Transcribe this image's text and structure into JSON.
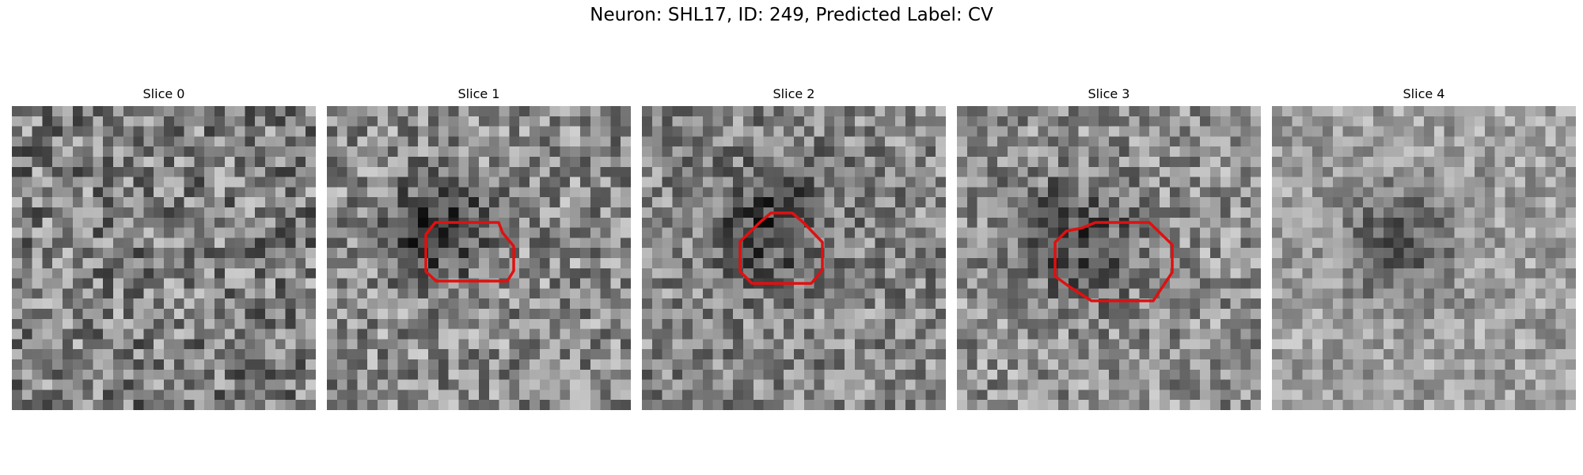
{
  "figure": {
    "title": "Neuron: SHL17, ID: 249, Predicted Label: CV"
  },
  "colors": {
    "contour": "#e01010",
    "background": "#ffffff"
  },
  "panels": [
    {
      "title": "Slice 0",
      "has_contour": false,
      "dark_spot": "none"
    },
    {
      "title": "Slice 1",
      "has_contour": true,
      "dark_spot": "centered-left"
    },
    {
      "title": "Slice 2",
      "has_contour": true,
      "dark_spot": "centered"
    },
    {
      "title": "Slice 3",
      "has_contour": true,
      "dark_spot": "centered"
    },
    {
      "title": "Slice 4",
      "has_contour": false,
      "dark_spot": "faint-centered"
    }
  ]
}
